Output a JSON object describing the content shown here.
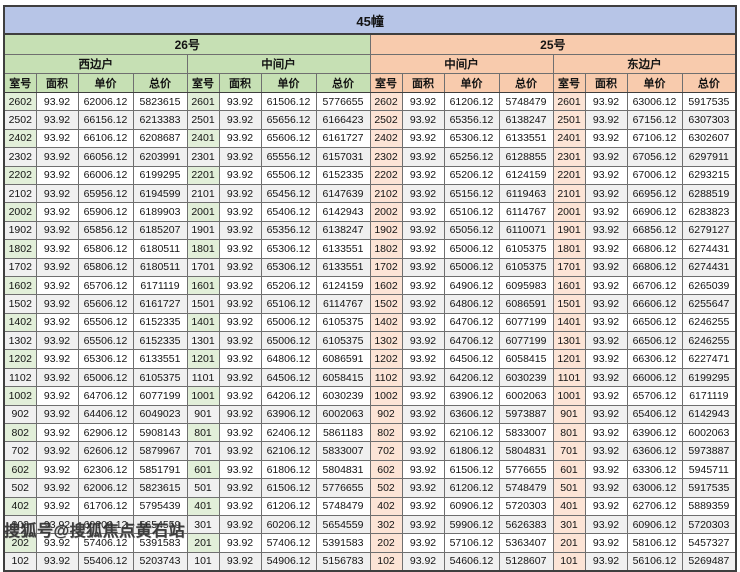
{
  "title": "45幢",
  "blocks": {
    "left": "26号",
    "right": "25号"
  },
  "unit_types": [
    "西边户",
    "中间户",
    "中间户",
    "东边户"
  ],
  "col_headers": [
    "室号",
    "面积",
    "单价",
    "总价"
  ],
  "watermark_text": "搜狐号@搜狐焦点黄石站",
  "colors": {
    "title_band": "#b7c5e7",
    "block_26": "#c6e0b4",
    "block_25": "#f8cbad",
    "room_cell_26": "#e2efd9",
    "room_cell_25": "#fce4d6",
    "stripe": "#f0f0f0"
  },
  "rows": [
    [
      "2602",
      "93.92",
      "62006.12",
      "5823615",
      "2601",
      "93.92",
      "61506.12",
      "5776655",
      "2602",
      "93.92",
      "61206.12",
      "5748479",
      "2601",
      "93.92",
      "63006.12",
      "5917535"
    ],
    [
      "2502",
      "93.92",
      "66156.12",
      "6213383",
      "2501",
      "93.92",
      "65656.12",
      "6166423",
      "2502",
      "93.92",
      "65356.12",
      "6138247",
      "2501",
      "93.92",
      "67156.12",
      "6307303"
    ],
    [
      "2402",
      "93.92",
      "66106.12",
      "6208687",
      "2401",
      "93.92",
      "65606.12",
      "6161727",
      "2402",
      "93.92",
      "65306.12",
      "6133551",
      "2401",
      "93.92",
      "67106.12",
      "6302607"
    ],
    [
      "2302",
      "93.92",
      "66056.12",
      "6203991",
      "2301",
      "93.92",
      "65556.12",
      "6157031",
      "2302",
      "93.92",
      "65256.12",
      "6128855",
      "2301",
      "93.92",
      "67056.12",
      "6297911"
    ],
    [
      "2202",
      "93.92",
      "66006.12",
      "6199295",
      "2201",
      "93.92",
      "65506.12",
      "6152335",
      "2202",
      "93.92",
      "65206.12",
      "6124159",
      "2201",
      "93.92",
      "67006.12",
      "6293215"
    ],
    [
      "2102",
      "93.92",
      "65956.12",
      "6194599",
      "2101",
      "93.92",
      "65456.12",
      "6147639",
      "2102",
      "93.92",
      "65156.12",
      "6119463",
      "2101",
      "93.92",
      "66956.12",
      "6288519"
    ],
    [
      "2002",
      "93.92",
      "65906.12",
      "6189903",
      "2001",
      "93.92",
      "65406.12",
      "6142943",
      "2002",
      "93.92",
      "65106.12",
      "6114767",
      "2001",
      "93.92",
      "66906.12",
      "6283823"
    ],
    [
      "1902",
      "93.92",
      "65856.12",
      "6185207",
      "1901",
      "93.92",
      "65356.12",
      "6138247",
      "1902",
      "93.92",
      "65056.12",
      "6110071",
      "1901",
      "93.92",
      "66856.12",
      "6279127"
    ],
    [
      "1802",
      "93.92",
      "65806.12",
      "6180511",
      "1801",
      "93.92",
      "65306.12",
      "6133551",
      "1802",
      "93.92",
      "65006.12",
      "6105375",
      "1801",
      "93.92",
      "66806.12",
      "6274431"
    ],
    [
      "1702",
      "93.92",
      "65806.12",
      "6180511",
      "1701",
      "93.92",
      "65306.12",
      "6133551",
      "1702",
      "93.92",
      "65006.12",
      "6105375",
      "1701",
      "93.92",
      "66806.12",
      "6274431"
    ],
    [
      "1602",
      "93.92",
      "65706.12",
      "6171119",
      "1601",
      "93.92",
      "65206.12",
      "6124159",
      "1602",
      "93.92",
      "64906.12",
      "6095983",
      "1601",
      "93.92",
      "66706.12",
      "6265039"
    ],
    [
      "1502",
      "93.92",
      "65606.12",
      "6161727",
      "1501",
      "93.92",
      "65106.12",
      "6114767",
      "1502",
      "93.92",
      "64806.12",
      "6086591",
      "1501",
      "93.92",
      "66606.12",
      "6255647"
    ],
    [
      "1402",
      "93.92",
      "65506.12",
      "6152335",
      "1401",
      "93.92",
      "65006.12",
      "6105375",
      "1402",
      "93.92",
      "64706.12",
      "6077199",
      "1401",
      "93.92",
      "66506.12",
      "6246255"
    ],
    [
      "1302",
      "93.92",
      "65506.12",
      "6152335",
      "1301",
      "93.92",
      "65006.12",
      "6105375",
      "1302",
      "93.92",
      "64706.12",
      "6077199",
      "1301",
      "93.92",
      "66506.12",
      "6246255"
    ],
    [
      "1202",
      "93.92",
      "65306.12",
      "6133551",
      "1201",
      "93.92",
      "64806.12",
      "6086591",
      "1202",
      "93.92",
      "64506.12",
      "6058415",
      "1201",
      "93.92",
      "66306.12",
      "6227471"
    ],
    [
      "1102",
      "93.92",
      "65006.12",
      "6105375",
      "1101",
      "93.92",
      "64506.12",
      "6058415",
      "1102",
      "93.92",
      "64206.12",
      "6030239",
      "1101",
      "93.92",
      "66006.12",
      "6199295"
    ],
    [
      "1002",
      "93.92",
      "64706.12",
      "6077199",
      "1001",
      "93.92",
      "64206.12",
      "6030239",
      "1002",
      "93.92",
      "63906.12",
      "6002063",
      "1001",
      "93.92",
      "65706.12",
      "6171119"
    ],
    [
      "902",
      "93.92",
      "64406.12",
      "6049023",
      "901",
      "93.92",
      "63906.12",
      "6002063",
      "902",
      "93.92",
      "63606.12",
      "5973887",
      "901",
      "93.92",
      "65406.12",
      "6142943"
    ],
    [
      "802",
      "93.92",
      "62906.12",
      "5908143",
      "801",
      "93.92",
      "62406.12",
      "5861183",
      "802",
      "93.92",
      "62106.12",
      "5833007",
      "801",
      "93.92",
      "63906.12",
      "6002063"
    ],
    [
      "702",
      "93.92",
      "62606.12",
      "5879967",
      "701",
      "93.92",
      "62106.12",
      "5833007",
      "702",
      "93.92",
      "61806.12",
      "5804831",
      "701",
      "93.92",
      "63606.12",
      "5973887"
    ],
    [
      "602",
      "93.92",
      "62306.12",
      "5851791",
      "601",
      "93.92",
      "61806.12",
      "5804831",
      "602",
      "93.92",
      "61506.12",
      "5776655",
      "601",
      "93.92",
      "63306.12",
      "5945711"
    ],
    [
      "502",
      "93.92",
      "62006.12",
      "5823615",
      "501",
      "93.92",
      "61506.12",
      "5776655",
      "502",
      "93.92",
      "61206.12",
      "5748479",
      "501",
      "93.92",
      "63006.12",
      "5917535"
    ],
    [
      "402",
      "93.92",
      "61706.12",
      "5795439",
      "401",
      "93.92",
      "61206.12",
      "5748479",
      "402",
      "93.92",
      "60906.12",
      "5720303",
      "401",
      "93.92",
      "62706.12",
      "5889359"
    ],
    [
      "302",
      "93.92",
      "60206.12",
      "5654559",
      "301",
      "93.92",
      "60206.12",
      "5654559",
      "302",
      "93.92",
      "59906.12",
      "5626383",
      "301",
      "93.92",
      "60906.12",
      "5720303"
    ],
    [
      "202",
      "93.92",
      "57406.12",
      "5391583",
      "201",
      "93.92",
      "57406.12",
      "5391583",
      "202",
      "93.92",
      "57106.12",
      "5363407",
      "201",
      "93.92",
      "58106.12",
      "5457327"
    ],
    [
      "102",
      "93.92",
      "55406.12",
      "5203743",
      "101",
      "93.92",
      "54906.12",
      "5156783",
      "102",
      "93.92",
      "54606.12",
      "5128607",
      "101",
      "93.92",
      "56106.12",
      "5269487"
    ]
  ]
}
